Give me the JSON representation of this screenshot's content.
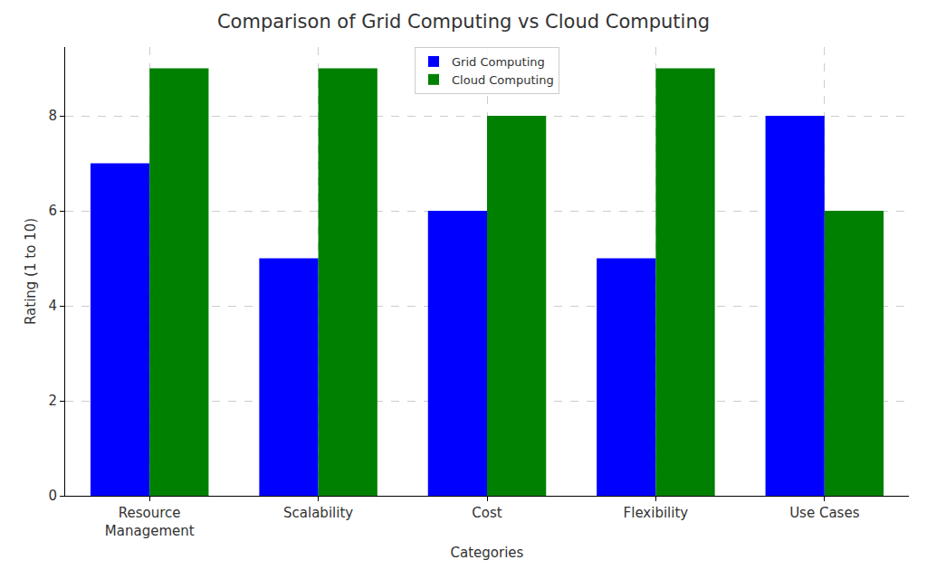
{
  "chart_data": {
    "type": "bar",
    "title": "Comparison of Grid Computing vs Cloud Computing",
    "x_label": "Categories",
    "y_label": "Rating (1 to 10)",
    "categories": [
      "Resource\nManagement",
      "Scalability",
      "Cost",
      "Flexibility",
      "Use Cases"
    ],
    "series": [
      {
        "name": "Grid Computing",
        "color": "#0000ff",
        "values": [
          7,
          5,
          6,
          5,
          8
        ]
      },
      {
        "name": "Cloud Computing",
        "color": "#008000",
        "values": [
          9,
          9,
          8,
          9,
          6
        ]
      }
    ],
    "ylim": [
      0,
      9.45
    ],
    "yticks": [
      0,
      2,
      4,
      6,
      8
    ],
    "grid": true,
    "legend": "upper center"
  }
}
